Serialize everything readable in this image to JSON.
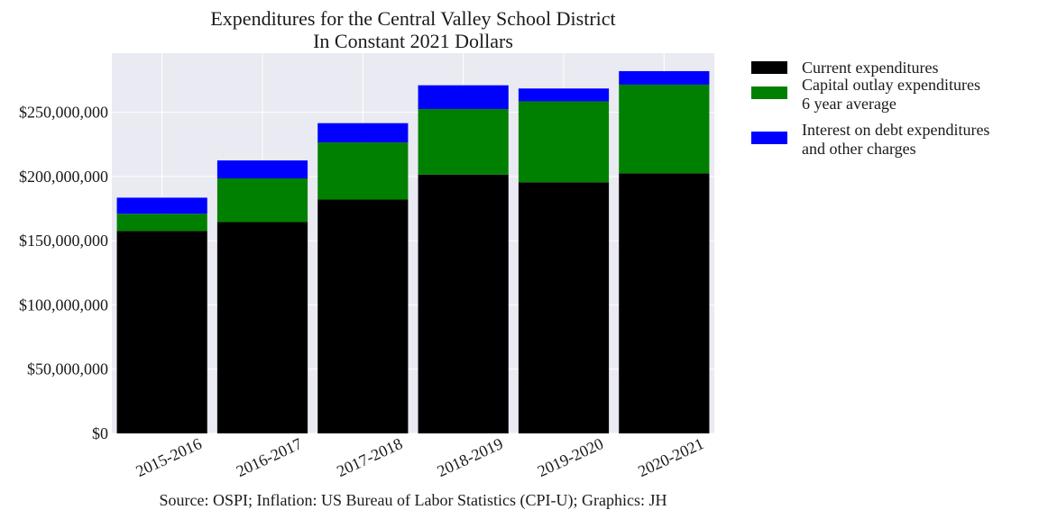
{
  "chart_data": {
    "type": "bar",
    "stacked": true,
    "title": "Expenditures for the Central Valley School District",
    "subtitle": "In Constant 2021 Dollars",
    "categories": [
      "2015-2016",
      "2016-2017",
      "2017-2018",
      "2018-2019",
      "2019-2020",
      "2020-2021"
    ],
    "series": [
      {
        "name": "Current expenditures",
        "color": "#000000",
        "values": [
          157500000,
          164500000,
          182000000,
          201500000,
          195500000,
          202500000
        ]
      },
      {
        "name": "Capital outlay expenditures\n6 year average",
        "color": "#008000",
        "values": [
          13500000,
          34000000,
          44500000,
          51000000,
          63000000,
          69000000
        ]
      },
      {
        "name": "Interest on debt expenditures\nand other charges",
        "color": "#0000ff",
        "values": [
          12500000,
          14000000,
          15000000,
          18500000,
          10000000,
          10500000
        ]
      }
    ],
    "xlabel": "",
    "ylabel": "",
    "ylim": [
      0,
      296000000
    ],
    "yticks": [
      0,
      50000000,
      100000000,
      150000000,
      200000000,
      250000000
    ],
    "ytick_labels": [
      "$0",
      "$50,000,000",
      "$100,000,000",
      "$150,000,000",
      "$200,000,000",
      "$250,000,000"
    ],
    "grid": true,
    "legend_position": "outside-top-right",
    "plot_background": "#eaeaf2",
    "grid_color": "#ffffff",
    "source": "Source: OSPI; Inflation: US Bureau of Labor Statistics (CPI-U); Graphics: JH"
  }
}
